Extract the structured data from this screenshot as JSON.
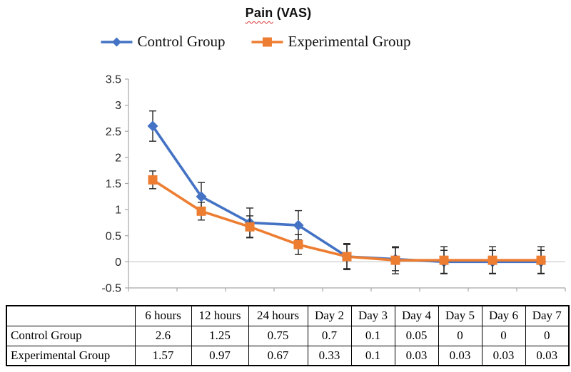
{
  "title": {
    "misspelled_word": "Pain",
    "rest": " (VAS)",
    "squiggle_color": "#e03131"
  },
  "chart_data": {
    "type": "line",
    "title": "Pain (VAS)",
    "categories": [
      "6 hours",
      "12 hours",
      "24 hours",
      "Day 2",
      "Day 3",
      "Day 4",
      "Day 5",
      "Day 6",
      "Day 7"
    ],
    "series": [
      {
        "name": "Control Group",
        "color": "#4472C4",
        "marker": "diamond",
        "values": [
          2.6,
          1.25,
          0.75,
          0.7,
          0.1,
          0.05,
          0,
          0,
          0
        ],
        "errors": [
          0.29,
          0.27,
          0.28,
          0.28,
          0.25,
          0.22,
          0.22,
          0.22,
          0.22
        ]
      },
      {
        "name": "Experimental Group",
        "color": "#ED7D31",
        "marker": "square",
        "values": [
          1.57,
          0.97,
          0.67,
          0.33,
          0.1,
          0.03,
          0.03,
          0.03,
          0.03
        ],
        "errors": [
          0.17,
          0.17,
          0.21,
          0.19,
          0.23,
          0.26,
          0.26,
          0.26,
          0.26
        ]
      }
    ],
    "error_bars_estimated": true,
    "error_bar_color": "#262626",
    "ylim": [
      -0.5,
      3.5
    ],
    "y_ticks": [
      {
        "label": "3.5",
        "value": 3.5
      },
      {
        "label": "3",
        "value": 3
      },
      {
        "label": "2.5",
        "value": 2.5
      },
      {
        "label": "2",
        "value": 2
      },
      {
        "label": "1.5",
        "value": 1.5
      },
      {
        "label": "1",
        "value": 1
      },
      {
        "label": "0.5",
        "value": 0.5
      },
      {
        "label": "0",
        "value": 0
      },
      {
        "label": "-0.5",
        "value": -0.5
      }
    ],
    "x_axis_labels_visible": false,
    "grid": "horizontal zero-line only",
    "axis_color": "#a6a6a6",
    "legend_position": "top"
  },
  "table": {
    "columns": [
      "",
      "6 hours",
      "12 hours",
      "24 hours",
      "Day 2",
      "Day 3",
      "Day 4",
      "Day 5",
      "Day 6",
      "Day 7"
    ],
    "rows": [
      {
        "label": "Control Group",
        "values": [
          "2.6",
          "1.25",
          "0.75",
          "0.7",
          "0.1",
          "0.05",
          "0",
          "0",
          "0"
        ]
      },
      {
        "label": "Experimental Group",
        "values": [
          "1.57",
          "0.97",
          "0.67",
          "0.33",
          "0.1",
          "0.03",
          "0.03",
          "0.03",
          "0.03"
        ]
      }
    ]
  }
}
